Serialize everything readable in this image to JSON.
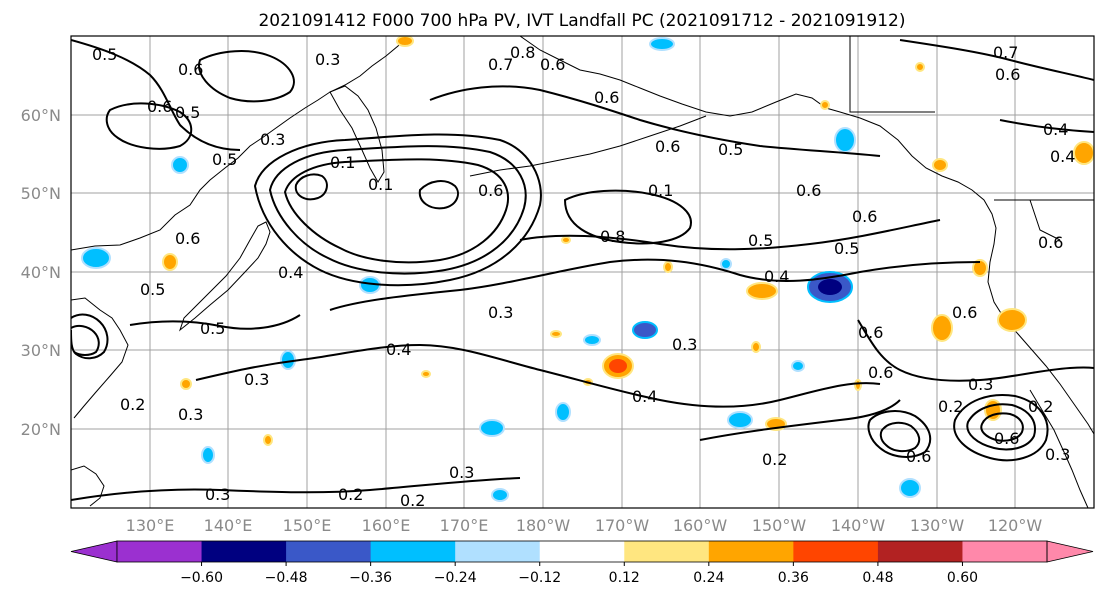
{
  "title": "2021091412 F000 700 hPa PV, IVT Landfall PC (2021091712 - 2021091912)",
  "map": {
    "lon_ticks": [
      "130°E",
      "140°E",
      "150°E",
      "160°E",
      "170°E",
      "180°W",
      "170°W",
      "160°W",
      "150°W",
      "140°W",
      "130°W",
      "120°W"
    ],
    "lat_ticks": [
      "60°N",
      "50°N",
      "40°N",
      "30°N",
      "20°N"
    ]
  },
  "contour_labels": [
    "0.5",
    "0.6",
    "0.3",
    "0.8",
    "0.7",
    "0.6",
    "0.6",
    "0.7",
    "0.6",
    "0.4",
    "0.5",
    "0.6",
    "0.5",
    "0.4",
    "0.6",
    "0.3",
    "0.1",
    "0.1",
    "0.6",
    "0.5",
    "0.1",
    "0.6",
    "0.6",
    "0.8",
    "0.5",
    "0.5",
    "0.6",
    "0.6",
    "0.4",
    "0.5",
    "0.4",
    "0.5",
    "0.3",
    "0.4",
    "0.6",
    "0.3",
    "0.3",
    "0.6",
    "0.2",
    "0.6",
    "0.4",
    "0.3",
    "0.2",
    "0.2",
    "0.6",
    "0.3",
    "0.2",
    "0.6",
    "0.3",
    "0.3",
    "0.2",
    "0.3",
    "0.2"
  ],
  "colorbar": {
    "colors": [
      "#9b30d0",
      "#000080",
      "#3a58c8",
      "#00bfff",
      "#b0e0ff",
      "#ffffff",
      "#ffe680",
      "#ffa500",
      "#ff4500",
      "#b22222",
      "#ff88aa"
    ],
    "tick_labels": [
      "−0.60",
      "−0.48",
      "−0.36",
      "−0.24",
      "−0.12",
      "0.12",
      "0.24",
      "0.36",
      "0.48",
      "0.60"
    ]
  }
}
